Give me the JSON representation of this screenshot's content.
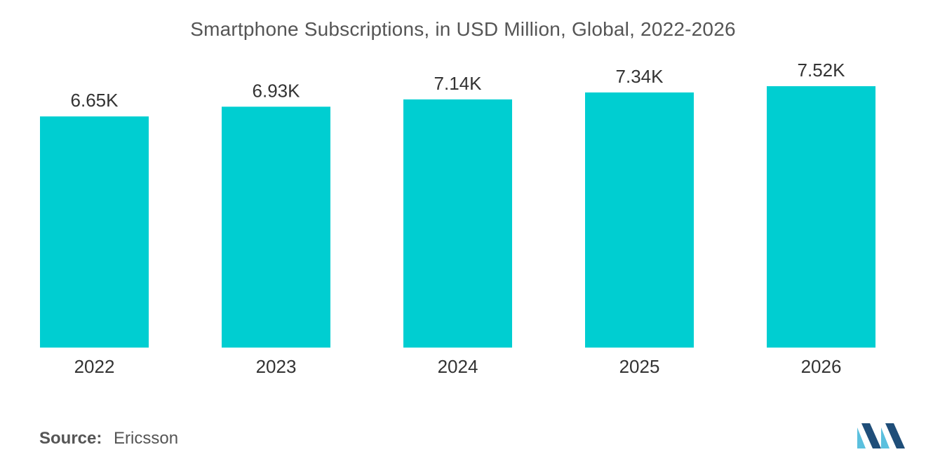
{
  "chart_data": {
    "type": "bar",
    "title": "Smartphone Subscriptions, in USD Million, Global, 2022-2026",
    "categories": [
      "2022",
      "2023",
      "2024",
      "2025",
      "2026"
    ],
    "values": [
      6650,
      6930,
      7140,
      7340,
      7520
    ],
    "data_labels": [
      "6.65K",
      "6.93K",
      "7.14K",
      "7.34K",
      "7.52K"
    ],
    "xlabel": "",
    "ylabel": "",
    "ylim": [
      0,
      10000
    ],
    "grid": false,
    "legend": "none",
    "colors": {
      "bar": "#00CED1"
    }
  },
  "footer": {
    "source_key": "Source:",
    "source_value": "Ericsson"
  },
  "brand": {
    "logo_icon": "mordor-intelligence-logo-icon",
    "colors": {
      "light": "#5BC0DE",
      "dark": "#1F4E79"
    }
  }
}
